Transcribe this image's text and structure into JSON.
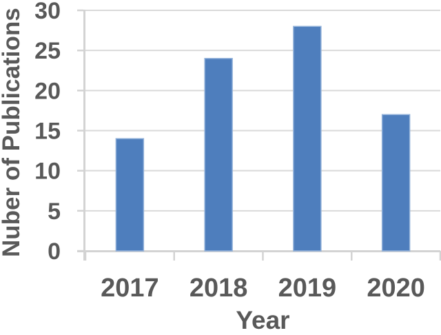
{
  "chart_data": {
    "type": "bar",
    "categories": [
      "2017",
      "2018",
      "2019",
      "2020"
    ],
    "values": [
      14,
      24,
      28,
      17
    ],
    "xlabel": "Year",
    "ylabel": "Nuber of Publications",
    "yticks": [
      0,
      5,
      10,
      15,
      20,
      25,
      30
    ],
    "ylim": [
      0,
      30
    ],
    "grid": true,
    "legend": "none",
    "colors": {
      "bar": "#4E7EBD",
      "bar_edge": "#93B2DA",
      "gridline": "#D9D9D9",
      "axis": "#D3D3D3",
      "text": "#595959"
    }
  }
}
